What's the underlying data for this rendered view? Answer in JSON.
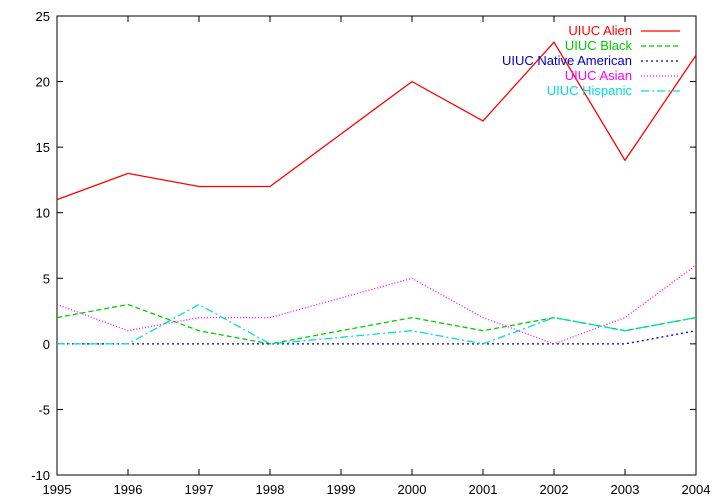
{
  "chart_data": {
    "type": "line",
    "title": "",
    "xlabel": "",
    "ylabel": "",
    "x": [
      1995,
      1996,
      1997,
      1998,
      1999,
      2000,
      2001,
      2002,
      2003,
      2004
    ],
    "xlim": [
      1995,
      2004
    ],
    "ylim": [
      -10,
      25
    ],
    "y_ticks": [
      -10,
      -5,
      0,
      5,
      10,
      15,
      20,
      25
    ],
    "grid": false,
    "legend_position": "top-right",
    "series": [
      {
        "name": "UIUC Alien",
        "color": "#ff0000",
        "dash": "solid",
        "values": [
          11,
          13,
          12,
          12,
          16,
          20,
          17,
          23,
          14,
          22
        ]
      },
      {
        "name": "UIUC Black",
        "color": "#00cc00",
        "dash": "dashed",
        "values": [
          2,
          3,
          1,
          0,
          1,
          2,
          1,
          2,
          1,
          2
        ]
      },
      {
        "name": "UIUC Native American",
        "color": "#0000cc",
        "dash": "dotted",
        "values": [
          0,
          0,
          0,
          0,
          0,
          0,
          0,
          0,
          0,
          1
        ]
      },
      {
        "name": "UIUC Asian",
        "color": "#ff00ff",
        "dash": "fine-dotted",
        "values": [
          3,
          1,
          2,
          2,
          3.5,
          5,
          2,
          0,
          2,
          6
        ]
      },
      {
        "name": "UIUC Hispanic",
        "color": "#00dddd",
        "dash": "dash-dot",
        "values": [
          0,
          0,
          3,
          0,
          0.5,
          1,
          0,
          2,
          1,
          2
        ]
      }
    ]
  }
}
